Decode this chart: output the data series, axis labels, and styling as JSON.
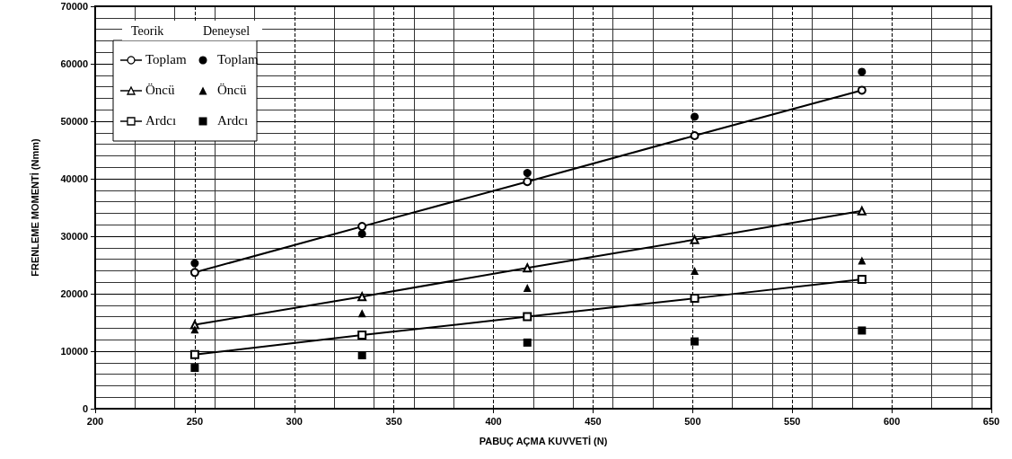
{
  "chart_data": {
    "type": "line",
    "xlabel": "PABUÇ AÇMA KUVVETİ (N)",
    "ylabel": "FRENLEME MOMENTİ (Nmm)",
    "x": [
      250,
      334,
      417,
      501,
      585
    ],
    "annotations": [
      "Teorik",
      "Deneysel"
    ],
    "series": [
      {
        "name": "Toplam",
        "marker": "circle",
        "color": "#000000",
        "values": [
          23700,
          31700,
          39500,
          47500,
          55400
        ]
      },
      {
        "name": "Öncü",
        "marker": "triangle",
        "color": "#000000",
        "values": [
          14600,
          19500,
          24500,
          29400,
          34400
        ]
      },
      {
        "name": "Ardcı",
        "marker": "square",
        "color": "#000000",
        "values": [
          9400,
          12800,
          16000,
          19200,
          22500
        ]
      },
      {
        "name": "Toplam",
        "type": "scatter",
        "marker": "circle",
        "color": "#000000",
        "values": [
          25300,
          30400,
          41000,
          50800,
          58600
        ]
      },
      {
        "name": "Öncü",
        "type": "scatter",
        "marker": "triangle",
        "color": "#000000",
        "values": [
          13800,
          16600,
          21000,
          24000,
          25800
        ]
      },
      {
        "name": "Ardcı",
        "type": "scatter",
        "marker": "square",
        "color": "#000000",
        "values": [
          7100,
          9300,
          11500,
          11700,
          13600
        ]
      }
    ],
    "xlim": [
      200,
      650
    ],
    "xticks": [
      200,
      250,
      300,
      350,
      400,
      450,
      500,
      550,
      600,
      650
    ],
    "ylim": [
      0,
      70000
    ],
    "yticks": [
      0,
      10000,
      20000,
      30000,
      40000,
      50000,
      60000,
      70000
    ],
    "grid": true,
    "legend": "top left",
    "line_style": "solid"
  }
}
